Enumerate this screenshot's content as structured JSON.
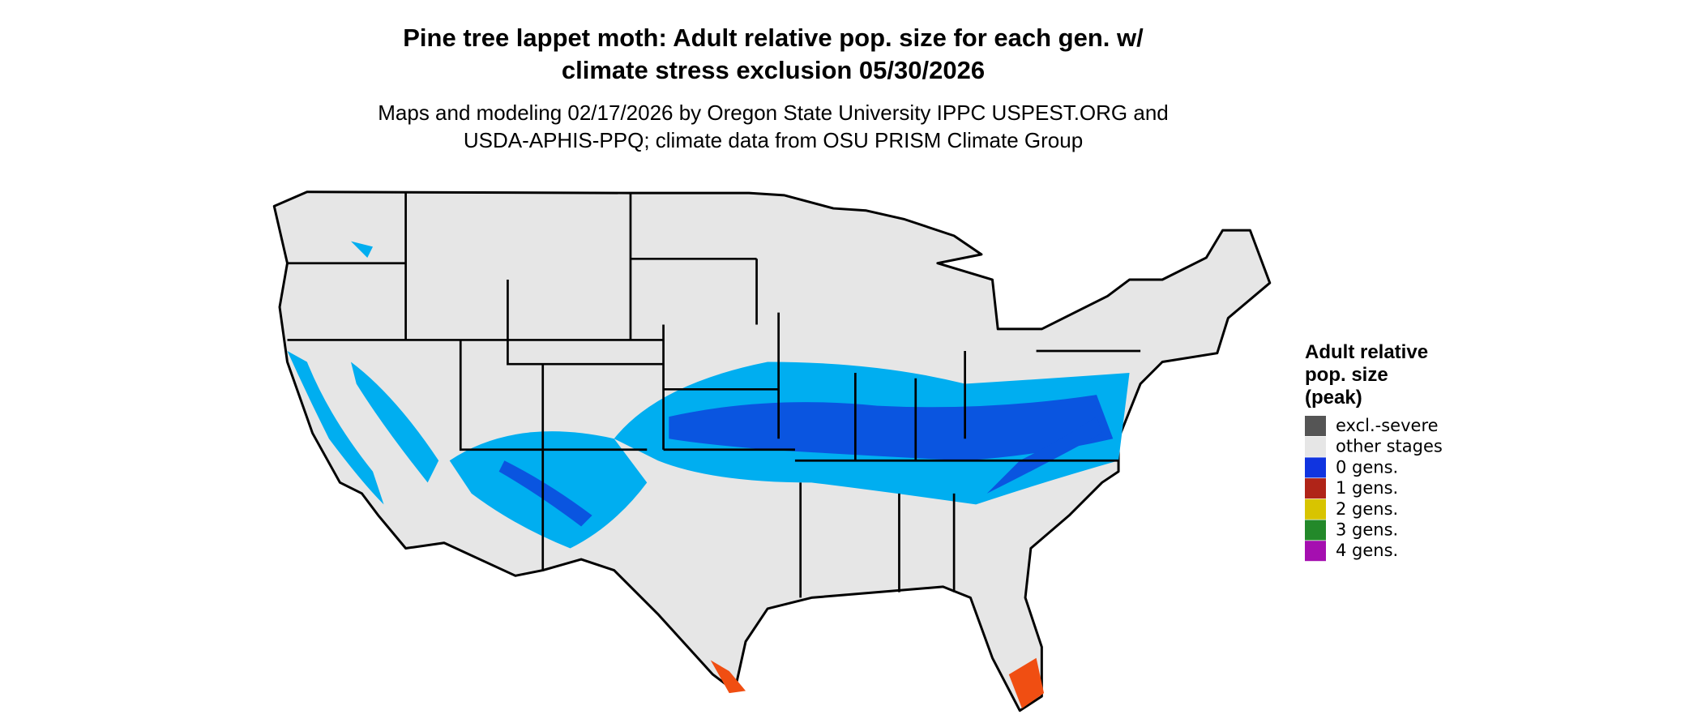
{
  "header": {
    "title": [
      "Pine tree lappet moth: Adult relative pop. size for each gen. w/",
      "climate stress exclusion 05/30/2026"
    ],
    "subtitle": [
      "Maps and modeling 02/17/2026 by Oregon State University IPPC USPEST.ORG and",
      "USDA-APHIS-PPQ; climate data from OSU PRISM Climate Group"
    ]
  },
  "legend": {
    "title": [
      "Adult relative",
      "pop. size",
      "(peak)"
    ],
    "items": [
      {
        "label": "excl.-severe",
        "color": "#555555"
      },
      {
        "label": "other stages",
        "color": "#e6e6e6"
      },
      {
        "label": "0 gens.",
        "color": "#1034e0"
      },
      {
        "label": "1 gens.",
        "color": "#b02418"
      },
      {
        "label": "2 gens.",
        "color": "#d8c400"
      },
      {
        "label": "3 gens.",
        "color": "#23892a"
      },
      {
        "label": "4 gens.",
        "color": "#a50fb0"
      }
    ]
  }
}
